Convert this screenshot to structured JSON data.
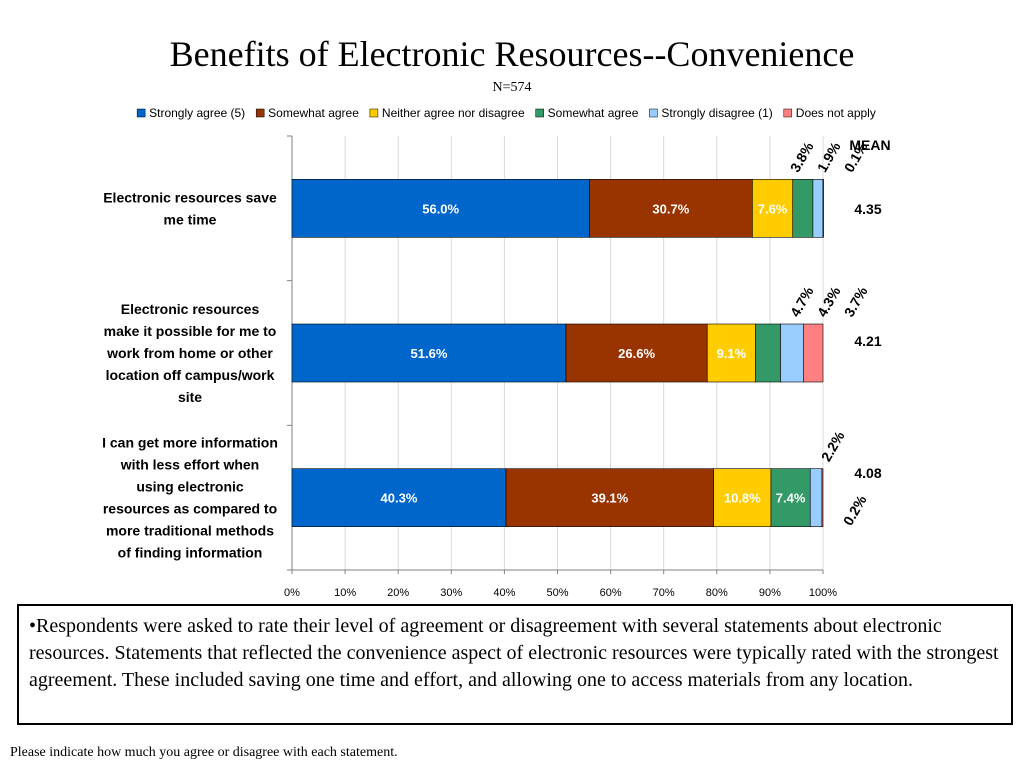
{
  "title": "Benefits of Electronic Resources--Convenience",
  "subtitle": "N=574",
  "note": "•Respondents were asked to rate their level of agreement or disagreement with several statements about electronic resources.  Statements that reflected the convenience aspect of electronic resources were typically rated with the strongest agreement. These included saving one time and effort, and allowing one to access materials from any location.",
  "footer": "Please indicate how much you agree or disagree with each statement.",
  "chart_data": {
    "type": "bar",
    "orientation": "horizontal",
    "stacked": true,
    "categories": [
      [
        "Electronic resources save",
        "me time"
      ],
      [
        "Electronic resources",
        "make it possible for me to",
        "work from home or other",
        "location off campus/work",
        "site"
      ],
      [
        "I can get more information",
        "with less effort when",
        "using electronic",
        "resources as compared to",
        "more traditional methods",
        "of finding information"
      ]
    ],
    "series": [
      {
        "name": "Strongly agree (5)",
        "color": "#0066CC",
        "values": [
          56.0,
          51.6,
          40.3
        ],
        "labels": [
          "56.0%",
          "51.6%",
          "40.3%"
        ]
      },
      {
        "name": "Somewhat agree",
        "color": "#993300",
        "values": [
          30.7,
          26.6,
          39.1
        ],
        "labels": [
          "30.7%",
          "26.6%",
          "39.1%"
        ]
      },
      {
        "name": "Neither agree nor disagree",
        "color": "#FFCC00",
        "values": [
          7.6,
          9.1,
          10.8
        ],
        "labels": [
          "7.6%",
          "9.1%",
          "10.8%"
        ]
      },
      {
        "name": "Somewhat agree",
        "color": "#339966",
        "values": [
          3.8,
          4.7,
          7.4
        ],
        "labels": [
          "3.8%",
          "4.7%",
          "7.4%"
        ]
      },
      {
        "name": "Strongly disagree (1)",
        "color": "#99CCFF",
        "values": [
          1.9,
          4.3,
          2.2
        ],
        "labels": [
          "1.9%",
          "4.3%",
          "2.2%"
        ]
      },
      {
        "name": "Does not apply",
        "color": "#FF8080",
        "values": [
          0.1,
          3.7,
          0.2
        ],
        "labels": [
          "0.1%",
          "3.7%",
          "0.2%"
        ]
      }
    ],
    "mean_header": "MEAN",
    "means": [
      "4.35",
      "4.21",
      "4.08"
    ],
    "x_ticks": [
      "0%",
      "10%",
      "20%",
      "30%",
      "40%",
      "50%",
      "60%",
      "70%",
      "80%",
      "90%",
      "100%"
    ],
    "xlim": [
      0,
      100
    ],
    "grid": "vertical",
    "legend": "top"
  }
}
